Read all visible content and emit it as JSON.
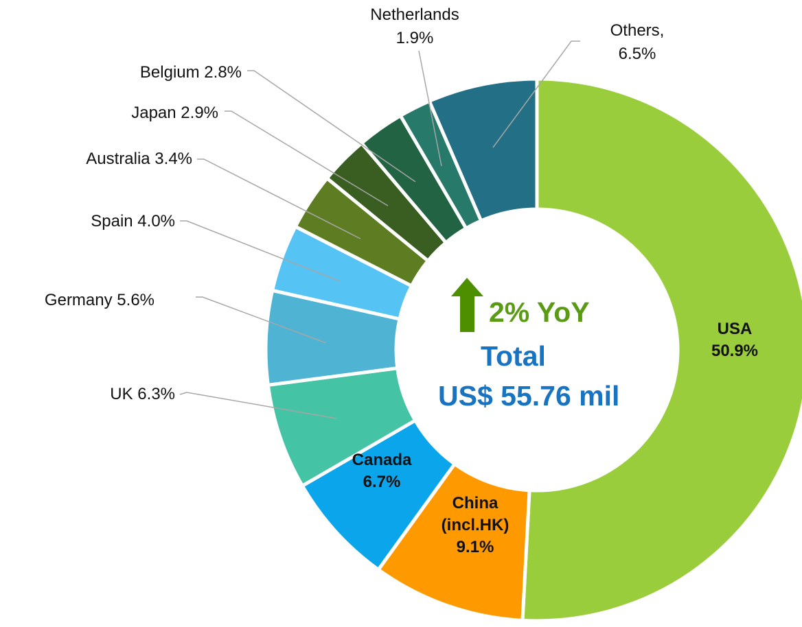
{
  "chart_data": {
    "type": "donut",
    "categories": [
      "USA",
      "China (incl.HK)",
      "Canada",
      "UK",
      "Germany",
      "Spain",
      "Australia",
      "Japan",
      "Belgium",
      "Netherlands",
      "Others,"
    ],
    "values": [
      50.9,
      9.1,
      6.7,
      6.3,
      5.6,
      4.0,
      3.4,
      2.9,
      2.8,
      1.9,
      6.5
    ],
    "value_labels": [
      "50.9%",
      "9.1%",
      "6.7%",
      "6.3%",
      "5.6%",
      "4.0%",
      "3.4%",
      "2.9%",
      "2.8%",
      "1.9%",
      "6.5%"
    ],
    "colors": [
      "#9acd3c",
      "#ff9900",
      "#0ba5ec",
      "#45c3a5",
      "#4fb3d3",
      "#55c4f5",
      "#5e7d22",
      "#3a5e22",
      "#216343",
      "#27796a",
      "#236f86"
    ],
    "center_text": {
      "change": "2% YoY",
      "label": "Total",
      "total": "US$ 55.76 mil"
    }
  }
}
